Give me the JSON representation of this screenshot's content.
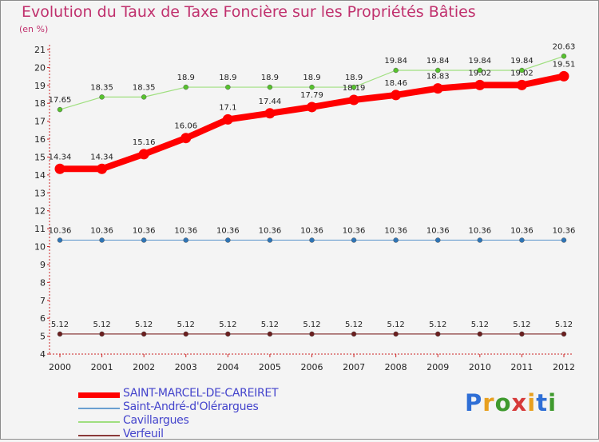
{
  "chart_data": {
    "type": "line",
    "title": "Evolution du Taux de Taxe Foncière sur les Propriétés Bâties",
    "ylabel": "(en %)",
    "xlabel": "",
    "x": [
      "2000",
      "2001",
      "2002",
      "2003",
      "2004",
      "2005",
      "2006",
      "2007",
      "2008",
      "2009",
      "2010",
      "2011",
      "2012"
    ],
    "ylim": [
      4,
      21
    ],
    "yticks": [
      4,
      5,
      6,
      7,
      8,
      9,
      10,
      11,
      12,
      13,
      14,
      15,
      16,
      17,
      18,
      19,
      20,
      21
    ],
    "grid": false,
    "legend_position": "bottom-left",
    "series": [
      {
        "name": "SAINT-MARCEL-DE-CAREIRET",
        "color": "#ff0000",
        "style": "thick",
        "values": [
          14.34,
          14.34,
          15.16,
          16.06,
          17.1,
          17.44,
          17.79,
          18.19,
          18.46,
          18.83,
          19.02,
          19.02,
          19.51
        ],
        "labels": [
          "14.34",
          "14.34",
          "15.16",
          "16.06",
          "17.1",
          "17.44",
          "17.79",
          "18.19",
          "18.46",
          "18.83",
          "19.02",
          "19.02",
          "19.51"
        ]
      },
      {
        "name": "Saint-André-d'Olérargues",
        "color": "#6a9fd0",
        "marker": "#2e75b6",
        "style": "thin",
        "values": [
          10.36,
          10.36,
          10.36,
          10.36,
          10.36,
          10.36,
          10.36,
          10.36,
          10.36,
          10.36,
          10.36,
          10.36,
          10.36
        ],
        "labels": [
          "10.36",
          "10.36",
          "10.36",
          "10.36",
          "10.36",
          "10.36",
          "10.36",
          "10.36",
          "10.36",
          "10.36",
          "10.36",
          "10.36",
          "10.36"
        ]
      },
      {
        "name": "Cavillargues",
        "color": "#9fdf7f",
        "marker": "#57c22e",
        "style": "thin",
        "values": [
          17.65,
          18.35,
          18.35,
          18.9,
          18.9,
          18.9,
          18.9,
          18.9,
          19.84,
          19.84,
          19.84,
          19.84,
          20.63
        ],
        "labels": [
          "17.65",
          "18.35",
          "18.35",
          "18.9",
          "18.9",
          "18.9",
          "18.9",
          "18.9",
          "19.84",
          "19.84",
          "19.84",
          "19.84",
          "20.63"
        ]
      },
      {
        "name": "Verfeuil",
        "color": "#8a3a3a",
        "marker": "#6b1e1e",
        "style": "thin",
        "values": [
          5.12,
          5.12,
          5.12,
          5.12,
          5.12,
          5.12,
          5.12,
          5.12,
          5.12,
          5.12,
          5.12,
          5.12,
          5.12
        ],
        "labels": [
          "5.12",
          "5.12",
          "5.12",
          "5.12",
          "5.12",
          "5.12",
          "5.12",
          "5.12",
          "5.12",
          "5.12",
          "5.12",
          "5.12",
          "5.12"
        ]
      }
    ]
  },
  "logo": {
    "text": "Proxiti",
    "colors": [
      "#2f6fd6",
      "#e8a020",
      "#3f9a2e",
      "#d63a3a",
      "#e8a020",
      "#2f6fd6",
      "#3f9a2e"
    ]
  }
}
